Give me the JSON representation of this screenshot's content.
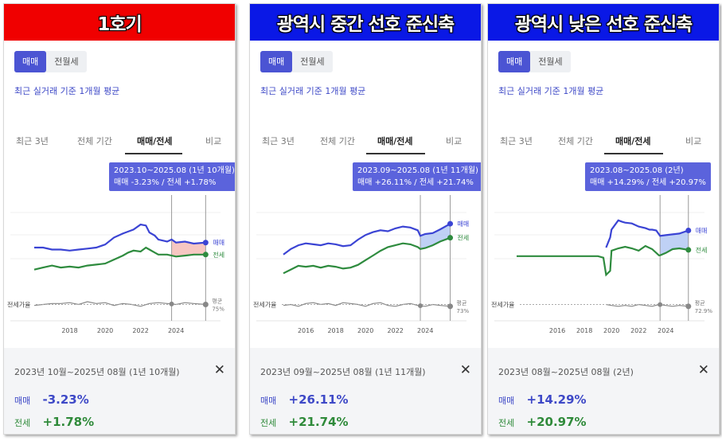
{
  "panels": [
    {
      "banner": "1호기",
      "banner_color": "#f00000",
      "toggle": [
        "매매",
        "전월세"
      ],
      "subtitle": "최근 실거래 기준 1개월 평균",
      "tabs": [
        "최근 3년",
        "전체 기간",
        "매매/전세",
        "비교"
      ],
      "tooltip": {
        "range": "2023.10~2025.08 (1년 10개월)",
        "values": "매매 -3.23%  /  전세 +1.78%"
      },
      "ratio_label": "전세가율",
      "ratio_avg_label": "평균",
      "ratio_avg_value": "75%",
      "line_labels": {
        "sale": "매매",
        "jeonse": "전세"
      },
      "summary": {
        "period": "2023년 10월~2025년 08월 (1년 10개월)",
        "sale_label": "매매",
        "sale_value": "-3.23%",
        "jeonse_label": "전세",
        "jeonse_value": "+1.78%",
        "close": "✕"
      }
    },
    {
      "banner": "광역시 중간 선호 준신축",
      "banner_color": "#0a18e6",
      "toggle": [
        "매매",
        "전월세"
      ],
      "subtitle": "최근 실거래 기준 1개월 평균",
      "tabs": [
        "최근 3년",
        "전체 기간",
        "매매/전세",
        "비교"
      ],
      "tooltip": {
        "range": "2023.09~2025.08 (1년 11개월)",
        "values": "매매 +26.11%  /  전세 +21.74%"
      },
      "ratio_label": "전세가율",
      "ratio_avg_label": "평균",
      "ratio_avg_value": "73%",
      "line_labels": {
        "sale": "매매",
        "jeonse": "전세"
      },
      "summary": {
        "period": "2023년 09월~2025년 08월 (1년 11개월)",
        "sale_label": "매매",
        "sale_value": "+26.11%",
        "jeonse_label": "전세",
        "jeonse_value": "+21.74%",
        "close": "✕"
      }
    },
    {
      "banner": "광역시 낮은 선호 준신축",
      "banner_color": "#0a18e6",
      "toggle": [
        "매매",
        "전월세"
      ],
      "subtitle": "최근 실거래 기준 1개월 평균",
      "tabs": [
        "최근 3년",
        "전체 기간",
        "매매/전세",
        "비교"
      ],
      "tooltip": {
        "range": "2023.08~2025.08 (2년)",
        "values": "매매 +14.29%  /  전세 +20.97%"
      },
      "ratio_label": "전세가율",
      "ratio_avg_label": "평균",
      "ratio_avg_value": "72.9%",
      "line_labels": {
        "sale": "매매",
        "jeonse": "전세"
      },
      "summary": {
        "period": "2023년 08월~2025년 08월 (2년)",
        "sale_label": "매매",
        "sale_value": "+14.29%",
        "jeonse_label": "전세",
        "jeonse_value": "+20.97%",
        "close": "✕"
      }
    }
  ],
  "chart_data": [
    {
      "type": "line",
      "x_ticks": [
        "2018",
        "2020",
        "2022",
        "2024"
      ],
      "x_range": [
        2016.0,
        2025.7
      ],
      "selection": [
        2023.75,
        2025.67
      ],
      "colors": {
        "sale": "#3b44d4",
        "jeonse": "#2e8b3e",
        "ratio": "#888888",
        "fill": "#f4b4ad"
      },
      "series": [
        {
          "name": "매매",
          "x": [
            2016.0,
            2016.5,
            2017.0,
            2017.5,
            2018.0,
            2018.5,
            2019.0,
            2019.5,
            2020.0,
            2020.5,
            2021.0,
            2021.3,
            2021.6,
            2022.0,
            2022.3,
            2022.5,
            2022.8,
            2023.0,
            2023.5,
            2023.75,
            2024.0,
            2024.5,
            2025.0,
            2025.67
          ],
          "y": [
            100,
            100,
            98,
            98,
            97,
            98,
            99,
            100,
            103,
            110,
            114,
            116,
            118,
            123,
            122,
            115,
            112,
            108,
            106,
            108,
            105,
            106,
            104,
            105
          ]
        },
        {
          "name": "전세",
          "x": [
            2016.0,
            2016.5,
            2017.0,
            2017.5,
            2018.0,
            2018.5,
            2019.0,
            2019.5,
            2020.0,
            2020.5,
            2021.0,
            2021.3,
            2021.6,
            2022.0,
            2022.3,
            2022.5,
            2022.8,
            2023.0,
            2023.5,
            2023.75,
            2024.0,
            2024.5,
            2025.0,
            2025.67
          ],
          "y": [
            78,
            80,
            82,
            80,
            81,
            80,
            82,
            83,
            84,
            88,
            92,
            95,
            97,
            96,
            100,
            98,
            95,
            93,
            93,
            92,
            91,
            92,
            93,
            93
          ]
        },
        {
          "name": "전세가율",
          "x": [
            2016.0,
            2016.5,
            2017.0,
            2017.5,
            2018.0,
            2018.5,
            2019.0,
            2019.5,
            2020.0,
            2020.5,
            2021.0,
            2021.5,
            2022.0,
            2022.5,
            2023.0,
            2023.5,
            2024.0,
            2024.5,
            2025.0,
            2025.67
          ],
          "y": [
            74,
            75,
            76,
            76,
            77,
            75,
            78,
            76,
            77,
            74,
            76,
            75,
            73,
            76,
            77,
            76,
            75,
            77,
            76,
            75
          ]
        }
      ]
    },
    {
      "type": "line",
      "x_ticks": [
        "2016",
        "2018",
        "2020",
        "2022",
        "2024"
      ],
      "x_range": [
        2014.5,
        2025.8
      ],
      "selection": [
        2023.67,
        2025.67
      ],
      "colors": {
        "sale": "#3b44d4",
        "jeonse": "#2e8b3e",
        "ratio": "#888888",
        "fill": "#a9c2f2"
      },
      "series": [
        {
          "name": "매매",
          "x": [
            2014.5,
            2015.0,
            2015.5,
            2016.0,
            2016.5,
            2017.0,
            2017.5,
            2018.0,
            2018.5,
            2019.0,
            2019.5,
            2020.0,
            2020.5,
            2021.0,
            2021.5,
            2022.0,
            2022.5,
            2023.0,
            2023.5,
            2023.67,
            2024.0,
            2024.5,
            2025.0,
            2025.67
          ],
          "y": [
            100,
            106,
            110,
            112,
            111,
            110,
            112,
            111,
            109,
            110,
            116,
            121,
            124,
            126,
            125,
            128,
            130,
            129,
            126,
            120,
            122,
            123,
            127,
            133
          ]
        },
        {
          "name": "전세",
          "x": [
            2014.5,
            2015.0,
            2015.5,
            2016.0,
            2016.5,
            2017.0,
            2017.5,
            2018.0,
            2018.5,
            2019.0,
            2019.5,
            2020.0,
            2020.5,
            2021.0,
            2021.5,
            2022.0,
            2022.5,
            2023.0,
            2023.5,
            2023.67,
            2024.0,
            2024.5,
            2025.0,
            2025.67
          ],
          "y": [
            80,
            84,
            88,
            87,
            88,
            86,
            88,
            87,
            85,
            86,
            89,
            94,
            99,
            104,
            108,
            110,
            112,
            111,
            108,
            106,
            107,
            110,
            114,
            118
          ]
        },
        {
          "name": "전세가율",
          "x": [
            2014.5,
            2015.0,
            2015.5,
            2016.0,
            2016.5,
            2017.0,
            2017.5,
            2018.0,
            2018.5,
            2019.0,
            2019.5,
            2020.0,
            2020.5,
            2021.0,
            2021.5,
            2022.0,
            2022.5,
            2023.0,
            2023.5,
            2024.0,
            2024.5,
            2025.0,
            2025.67
          ],
          "y": [
            74,
            75,
            73,
            76,
            77,
            75,
            76,
            74,
            77,
            76,
            75,
            73,
            76,
            77,
            74,
            73,
            75,
            76,
            74,
            73,
            75,
            74,
            73
          ]
        }
      ]
    },
    {
      "type": "line",
      "x_ticks": [
        "2016",
        "2018",
        "2020",
        "2022",
        "2024"
      ],
      "x_range": [
        2013.0,
        2025.8
      ],
      "selection": [
        2023.58,
        2025.67
      ],
      "colors": {
        "sale": "#3b44d4",
        "jeonse": "#2e8b3e",
        "ratio": "#888888",
        "fill": "#a9c2f2"
      },
      "series": [
        {
          "name": "매매",
          "x": [
            2019.6,
            2019.9,
            2020.0,
            2020.5,
            2020.8,
            2021.0,
            2021.5,
            2022.0,
            2022.5,
            2022.8,
            2023.0,
            2023.3,
            2023.58,
            2024.0,
            2024.5,
            2025.0,
            2025.67
          ],
          "y": [
            105,
            118,
            128,
            140,
            138,
            137,
            136,
            132,
            130,
            128,
            128,
            127,
            120,
            121,
            122,
            123,
            127
          ]
        },
        {
          "name": "전세",
          "x": [
            2013.0,
            2015.0,
            2017.0,
            2019.0,
            2019.4,
            2019.6,
            2019.9,
            2020.0,
            2020.5,
            2021.0,
            2021.5,
            2022.0,
            2022.5,
            2023.0,
            2023.5,
            2023.58,
            2024.0,
            2024.5,
            2025.0,
            2025.67
          ],
          "y": [
            94,
            94,
            94,
            94,
            92,
            70,
            75,
            101,
            104,
            106,
            104,
            101,
            107,
            103,
            95,
            95,
            98,
            103,
            104,
            102
          ]
        },
        {
          "name": "전세가율",
          "x": [
            2019.6,
            2020.0,
            2020.5,
            2021.0,
            2021.5,
            2022.0,
            2022.5,
            2023.0,
            2023.5,
            2024.0,
            2024.5,
            2025.0,
            2025.67
          ],
          "y": [
            75,
            74,
            73,
            74,
            73,
            75,
            74,
            73,
            75,
            74,
            73,
            74,
            73
          ]
        }
      ]
    }
  ]
}
